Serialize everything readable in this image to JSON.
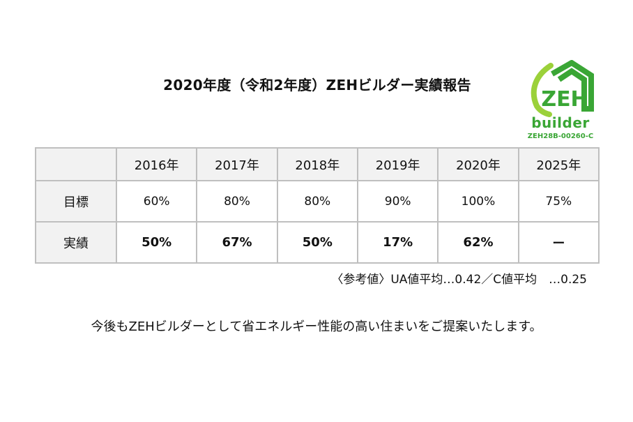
{
  "title": "2020年度（令和2年度）ZEHビルダー実績報告",
  "logo": {
    "mark_text": "ZEH",
    "sub_text": "builder",
    "registration": "ZEH28B-00260-C",
    "color": "#3aa635"
  },
  "table": {
    "corner": "",
    "columns": [
      "2016年",
      "2017年",
      "2018年",
      "2019年",
      "2020年",
      "2025年"
    ],
    "rows": [
      {
        "label": "目標",
        "values": [
          "60%",
          "80%",
          "80%",
          "90%",
          "100%",
          "75%"
        ]
      },
      {
        "label": "実績",
        "values": [
          "50%",
          "67%",
          "50%",
          "17%",
          "62%",
          "ー"
        ]
      }
    ]
  },
  "reference": "〈参考値〉UA値平均…0.42／C値平均　…0.25",
  "message": "今後もZEHビルダーとして省エネルギー性能の高い住まいをご提案いたします。"
}
